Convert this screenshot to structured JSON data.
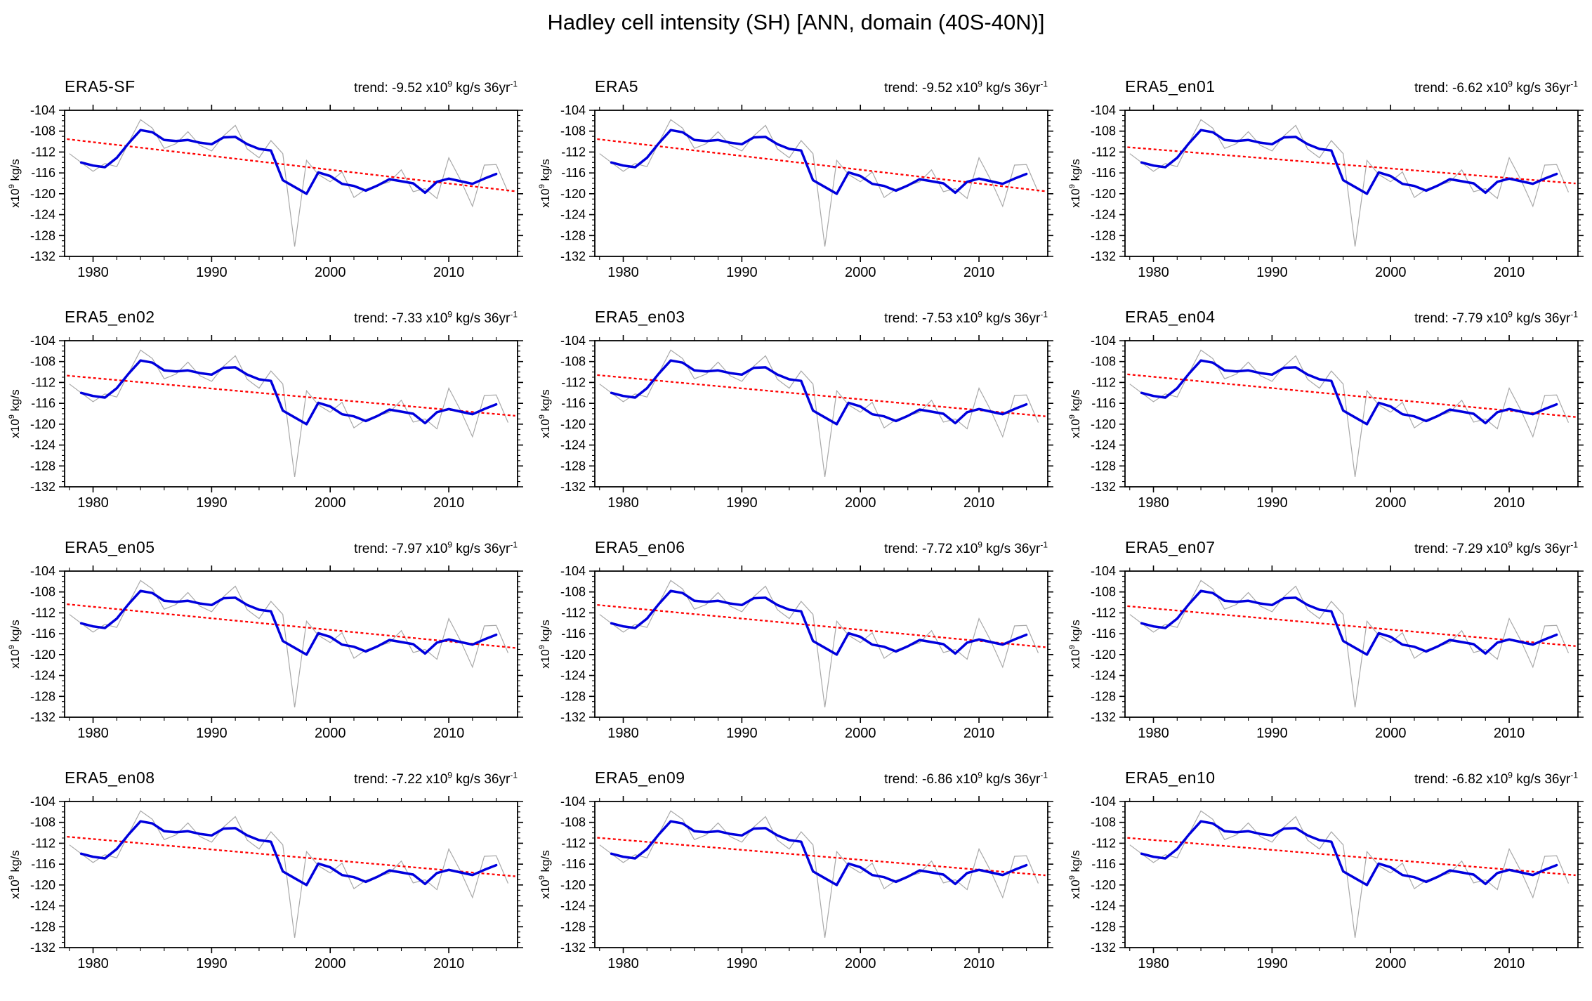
{
  "page": {
    "title": "Hadley cell intensity (SH) [ANN, domain (40S-40N)]"
  },
  "chart_data": {
    "type": "line",
    "grid": {
      "rows": 4,
      "cols": 3
    },
    "x_axis": {
      "range": [
        1977.6,
        2015.8
      ],
      "major_ticks": [
        1980,
        1990,
        2000,
        2010
      ],
      "minor_tick_step": 2
    },
    "y_axis": {
      "range": [
        -132,
        -104
      ],
      "major_ticks": [
        -104,
        -108,
        -112,
        -116,
        -120,
        -124,
        -128,
        -132
      ],
      "minor_tick_step": 1,
      "unit_label_base": "x10",
      "unit_label_exponent": "9",
      "unit_label_suffix": "kg/s"
    },
    "trend_text": {
      "prefix": "trend: ",
      "multiplier": " x10",
      "multiplier_exponent": "9",
      "units": " kg/s 36yr",
      "units_exponent": "-1"
    },
    "colors": {
      "annual": "#a8a8a8",
      "smoothed": "#0000dd",
      "trend": "#ff0000",
      "axis": "#000000"
    },
    "series_shared": {
      "annual": {
        "start_year": 1978,
        "values": [
          -112.3,
          -114.0,
          -115.7,
          -114.2,
          -114.8,
          -110.2,
          -105.8,
          -107.4,
          -111.3,
          -110.4,
          -108.1,
          -110.7,
          -111.8,
          -108.9,
          -106.9,
          -111.4,
          -113.1,
          -109.8,
          -112.3,
          -130.1,
          -113.6,
          -116.3,
          -117.7,
          -115.8,
          -120.7,
          -119.1,
          -118.4,
          -117.7,
          -115.4,
          -119.6,
          -119.0,
          -120.9,
          -113.1,
          -117.4,
          -122.4,
          -114.5,
          -114.4,
          -119.7
        ]
      },
      "smoothed": {
        "start_year": 1979,
        "values": [
          -114.0,
          -114.6,
          -114.9,
          -113.1,
          -110.3,
          -107.8,
          -108.2,
          -109.7,
          -109.9,
          -109.7,
          -110.2,
          -110.5,
          -109.2,
          -109.1,
          -110.5,
          -111.4,
          -111.7,
          -117.4,
          -118.7,
          -120.0,
          -115.9,
          -116.6,
          -118.1,
          -118.5,
          -119.4,
          -118.4,
          -117.2,
          -117.6,
          -118.0,
          -119.8,
          -117.7,
          -117.1,
          -117.6,
          -118.1,
          -117.1,
          -116.2
        ]
      },
      "trend_reference": {
        "mid_year": 1997,
        "mid_value": -114.6,
        "per_years": 36
      }
    },
    "panels": [
      {
        "name": "ERA5-SF",
        "trend_value": "-9.52"
      },
      {
        "name": "ERA5",
        "trend_value": "-9.52"
      },
      {
        "name": "ERA5_en01",
        "trend_value": "-6.62"
      },
      {
        "name": "ERA5_en02",
        "trend_value": "-7.33"
      },
      {
        "name": "ERA5_en03",
        "trend_value": "-7.53"
      },
      {
        "name": "ERA5_en04",
        "trend_value": "-7.79"
      },
      {
        "name": "ERA5_en05",
        "trend_value": "-7.97"
      },
      {
        "name": "ERA5_en06",
        "trend_value": "-7.72"
      },
      {
        "name": "ERA5_en07",
        "trend_value": "-7.29"
      },
      {
        "name": "ERA5_en08",
        "trend_value": "-7.22"
      },
      {
        "name": "ERA5_en09",
        "trend_value": "-6.86"
      },
      {
        "name": "ERA5_en10",
        "trend_value": "-6.82"
      }
    ]
  }
}
